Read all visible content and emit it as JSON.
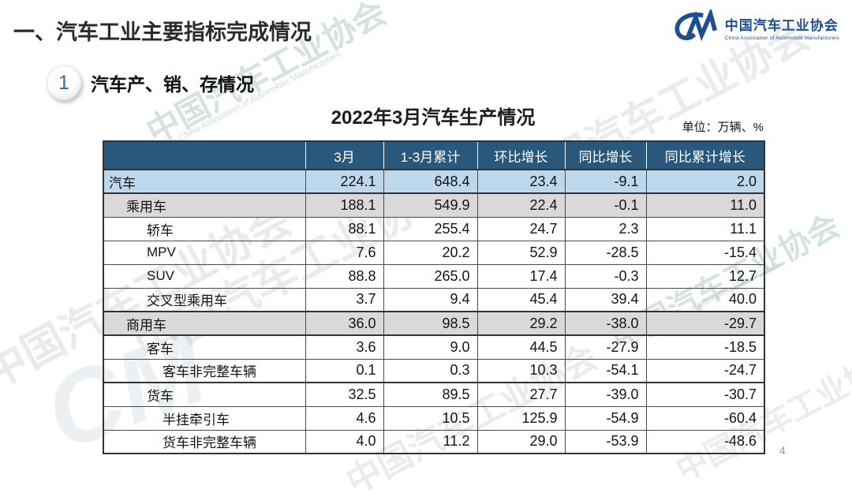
{
  "page": {
    "title": "一、汽车工业主要指标完成情况",
    "page_number": "4"
  },
  "logo": {
    "mark": "CM",
    "org_cn": "中国汽车工业协会",
    "org_en": "China Association of Automobile Manufacturers"
  },
  "section": {
    "number": "1",
    "title": "汽车产、销、存情况"
  },
  "table": {
    "title": "2022年3月汽车生产情况",
    "unit_label": "单位：万辆、%",
    "columns": [
      "",
      "3月",
      "1-3月累计",
      "环比增长",
      "同比增长",
      "同比累计增长"
    ],
    "rows": [
      {
        "label": "汽车",
        "indent": 0,
        "bg": "blue",
        "group_end": true,
        "values": [
          "224.1",
          "648.4",
          "23.4",
          "-9.1",
          "2.0"
        ]
      },
      {
        "label": "乘用车",
        "indent": 1,
        "bg": "gray",
        "group_end": false,
        "values": [
          "188.1",
          "549.9",
          "22.4",
          "-0.1",
          "11.0"
        ]
      },
      {
        "label": "轿车",
        "indent": 2,
        "bg": "white",
        "group_end": false,
        "values": [
          "88.1",
          "255.4",
          "24.7",
          "2.3",
          "11.1"
        ]
      },
      {
        "label": "MPV",
        "indent": 2,
        "bg": "white",
        "group_end": false,
        "values": [
          "7.6",
          "20.2",
          "52.9",
          "-28.5",
          "-15.4"
        ]
      },
      {
        "label": "SUV",
        "indent": 2,
        "bg": "white",
        "group_end": false,
        "values": [
          "88.8",
          "265.0",
          "17.4",
          "-0.3",
          "12.7"
        ]
      },
      {
        "label": "交叉型乘用车",
        "indent": 2,
        "bg": "white",
        "group_end": true,
        "values": [
          "3.7",
          "9.4",
          "45.4",
          "39.4",
          "40.0"
        ]
      },
      {
        "label": "商用车",
        "indent": 1,
        "bg": "gray",
        "group_end": true,
        "values": [
          "36.0",
          "98.5",
          "29.2",
          "-38.0",
          "-29.7"
        ]
      },
      {
        "label": "客车",
        "indent": 2,
        "bg": "white",
        "group_end": false,
        "values": [
          "3.6",
          "9.0",
          "44.5",
          "-27.9",
          "-18.5"
        ]
      },
      {
        "label": "客车非完整车辆",
        "indent": 3,
        "bg": "white",
        "group_end": true,
        "values": [
          "0.1",
          "0.3",
          "10.3",
          "-54.1",
          "-24.7"
        ]
      },
      {
        "label": "货车",
        "indent": 2,
        "bg": "white",
        "group_end": false,
        "values": [
          "32.5",
          "89.5",
          "27.7",
          "-39.0",
          "-30.7"
        ]
      },
      {
        "label": "半挂牵引车",
        "indent": 3,
        "bg": "white",
        "group_end": false,
        "values": [
          "4.6",
          "10.5",
          "125.9",
          "-54.9",
          "-60.4"
        ]
      },
      {
        "label": "货车非完整车辆",
        "indent": 3,
        "bg": "white",
        "group_end": false,
        "values": [
          "4.0",
          "11.2",
          "29.0",
          "-53.9",
          "-48.6"
        ]
      }
    ]
  },
  "watermark": {
    "text": "中国汽车工业协会",
    "subtext": "China Association of Automobile Manufacturers",
    "mark": "CM"
  },
  "colors": {
    "header_bg": "#2a587c",
    "row_blue": "#bdd7ec",
    "row_gray": "#d9d9d9",
    "logo_blue": "#1d4e8f",
    "badge_number_blue": "#2f6ca8"
  }
}
